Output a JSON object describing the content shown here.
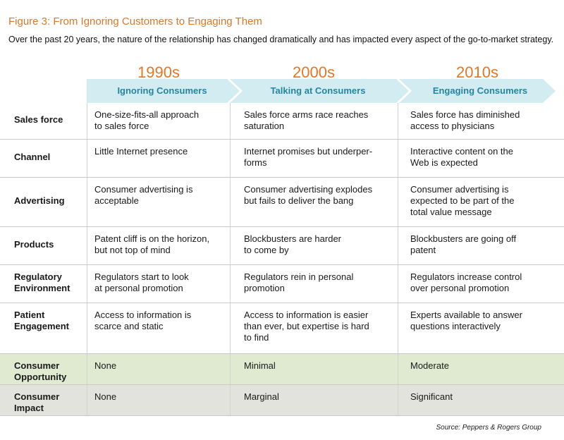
{
  "figure": {
    "title": "Figure 3: From Ignoring Customers to Engaging Them",
    "subtitle": "Over the past 20 years, the nature of the relationship has changed dramatically and has impacted every aspect of the go-to-market strategy."
  },
  "columns": [
    {
      "decade": "1990s",
      "stage": "Ignoring Consumers"
    },
    {
      "decade": "2000s",
      "stage": "Talking at Consumers"
    },
    {
      "decade": "2010s",
      "stage": "Engaging Consumers"
    }
  ],
  "rows": [
    {
      "label": "Sales force",
      "cells": [
        "One-size-fits-all approach\nto sales force",
        "Sales force arms race reaches\nsaturation",
        "Sales force has diminished\naccess to physicians"
      ]
    },
    {
      "label": "Channel",
      "cells": [
        "Little Internet presence",
        "Internet promises but underper-\nforms",
        "Interactive content on the\nWeb is expected"
      ]
    },
    {
      "label": "Advertising",
      "cells": [
        "Consumer advertising is\nacceptable",
        "Consumer advertising explodes\nbut fails to deliver the bang",
        "Consumer advertising is\nexpected to be part of the\ntotal value message"
      ]
    },
    {
      "label": "Products",
      "cells": [
        "Patent cliff is on the horizon,\nbut not top of mind",
        "Blockbusters are harder\nto come by",
        "Blockbusters are going off\npatent"
      ]
    },
    {
      "label": "Regulatory\nEnvironment",
      "cells": [
        "Regulators start to look\nat personal promotion",
        "Regulators rein in personal\npromotion",
        "Regulators increase control\nover personal promotion"
      ]
    },
    {
      "label": "Patient\nEngagement",
      "cells": [
        "Access to information is\nscarce and static",
        "Access to information is easier\nthan ever, but expertise is hard\nto find",
        "Experts available to answer\nquestions interactively"
      ]
    },
    {
      "label": "Consumer\nOpportunity",
      "cells": [
        "None",
        "Minimal",
        "Moderate"
      ]
    },
    {
      "label": "Consumer\nImpact",
      "cells": [
        "None",
        "Marginal",
        "Significant"
      ]
    }
  ],
  "source": "Source: Peppers & Rogers Group",
  "colors": {
    "title_orange": "#d9782a",
    "arrow_fill": "#d3ecf1",
    "stage_text": "#2286a3",
    "opportunity_row": "#dfead0",
    "impact_row": "#e3e3dd"
  }
}
